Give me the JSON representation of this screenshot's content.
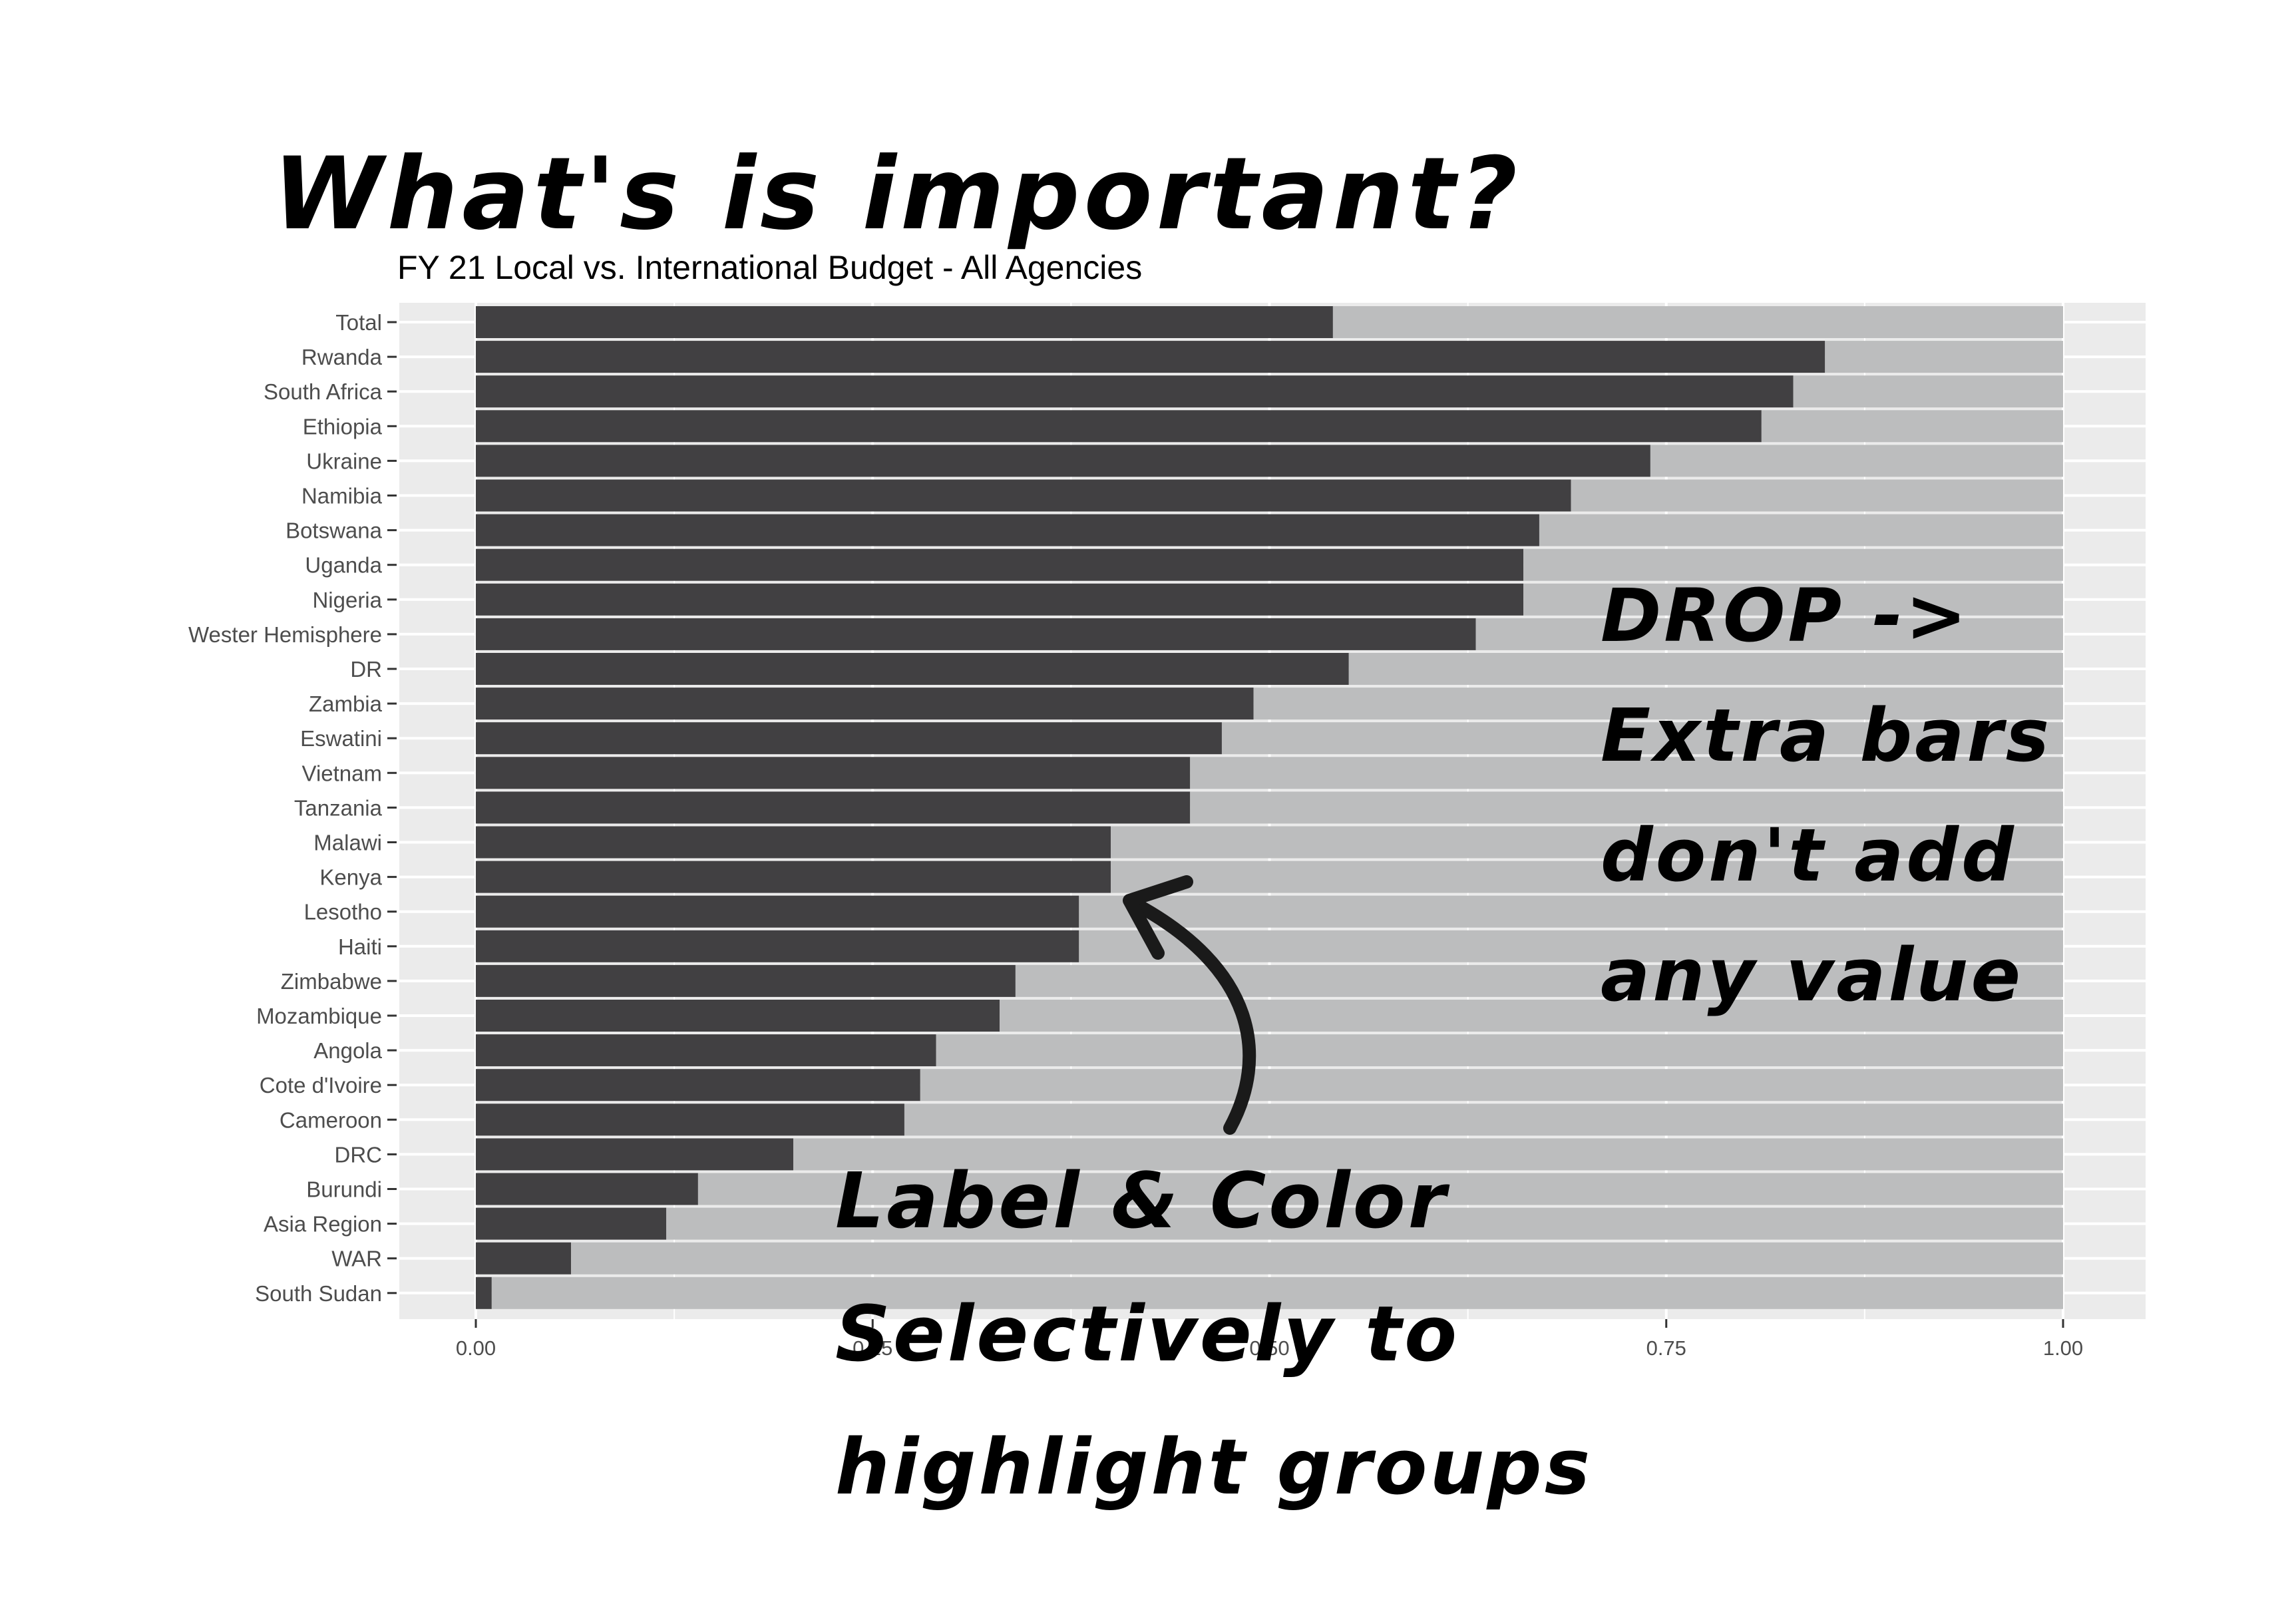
{
  "headline": "What's is important?",
  "subtitle": "FY 21 Local vs. International Budget - All Agencies",
  "annotations": {
    "drop_note": [
      "DROP ->",
      "Extra bars",
      "don't add",
      "any value"
    ],
    "label_note": [
      "Label & Color",
      "Selectively to",
      "highlight groups"
    ]
  },
  "colors": {
    "local_bar": "#414042",
    "total_bar": "#bcbdbe",
    "panel_background": "#ebebeb",
    "gridline": "#ffffff",
    "annotation_ink": "#1a1a1a"
  },
  "chart_data": {
    "type": "bar",
    "orientation": "horizontal",
    "stacked": true,
    "title": "FY 21 Local vs. International Budget - All Agencies",
    "xlabel": "",
    "ylabel": "",
    "xlim": [
      0,
      1
    ],
    "x_ticks": [
      "0.00",
      "0.25",
      "0.50",
      "0.75",
      "1.00"
    ],
    "grid": true,
    "legend": "none",
    "categories": [
      "Total",
      "Rwanda",
      "South Africa",
      "Ethiopia",
      "Ukraine",
      "Namibia",
      "Botswana",
      "Uganda",
      "Nigeria",
      "Wester Hemisphere",
      "DR",
      "Zambia",
      "Eswatini",
      "Vietnam",
      "Tanzania",
      "Malawi",
      "Kenya",
      "Lesotho",
      "Haiti",
      "Zimbabwe",
      "Mozambique",
      "Angola",
      "Cote d'Ivoire",
      "Cameroon",
      "DRC",
      "Burundi",
      "Asia Region",
      "WAR",
      "South Sudan"
    ],
    "series": [
      {
        "values": [
          0.54,
          0.85,
          0.83,
          0.81,
          0.74,
          0.69,
          0.67,
          0.66,
          0.66,
          0.63,
          0.55,
          0.49,
          0.47,
          0.45,
          0.45,
          0.4,
          0.4,
          0.38,
          0.38,
          0.34,
          0.33,
          0.29,
          0.28,
          0.27,
          0.2,
          0.14,
          0.12,
          0.06,
          0.01
        ]
      },
      {
        "values": [
          0.46,
          0.15,
          0.17,
          0.19,
          0.26,
          0.31,
          0.33,
          0.34,
          0.34,
          0.37,
          0.45,
          0.51,
          0.53,
          0.55,
          0.55,
          0.6,
          0.6,
          0.62,
          0.62,
          0.66,
          0.67,
          0.71,
          0.72,
          0.73,
          0.8,
          0.86,
          0.88,
          0.94,
          0.99
        ]
      }
    ]
  }
}
